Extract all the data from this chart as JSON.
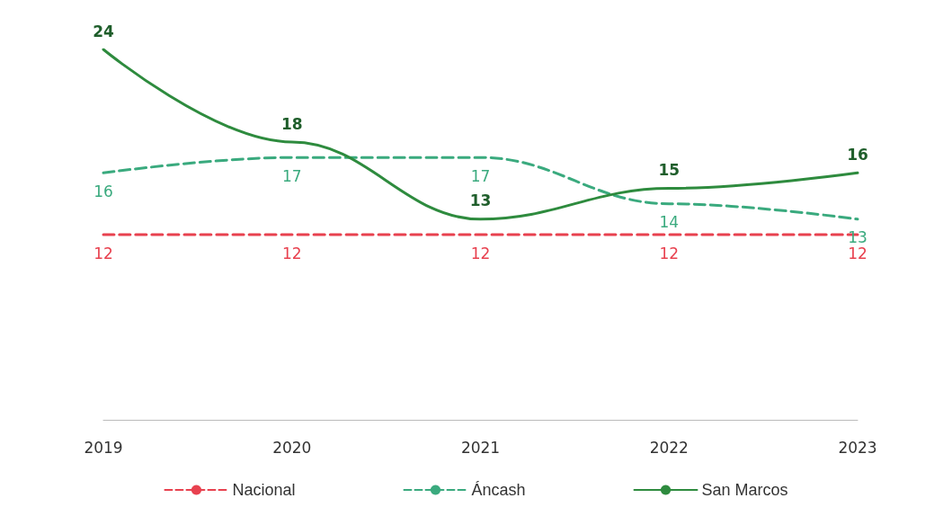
{
  "chart_data": {
    "type": "line",
    "categories": [
      "2019",
      "2020",
      "2021",
      "2022",
      "2023"
    ],
    "series": [
      {
        "name": "Nacional",
        "color": "#e8414f",
        "line_style": "dashed",
        "values": [
          12,
          12,
          12,
          12,
          12
        ]
      },
      {
        "name": "Áncash",
        "color": "#3aaa7e",
        "line_style": "dashed",
        "values": [
          16,
          17,
          17,
          14,
          13
        ]
      },
      {
        "name": "San Marcos",
        "color": "#2e8b3e",
        "line_style": "solid",
        "values": [
          24,
          18,
          13,
          15,
          16
        ]
      }
    ],
    "data_labels": true,
    "marker": "none",
    "grid": false,
    "legend": "bottom"
  }
}
